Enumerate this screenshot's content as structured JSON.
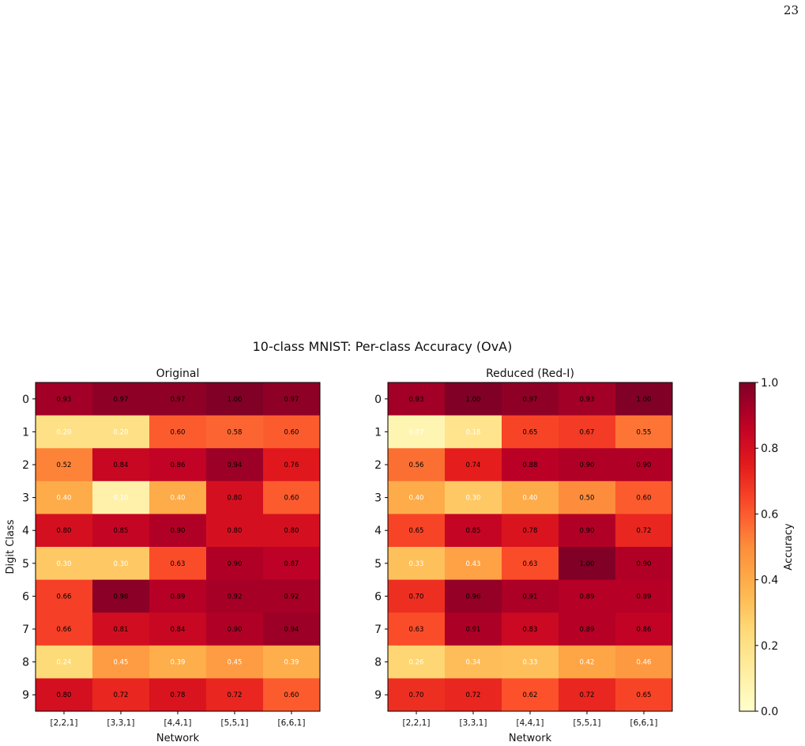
{
  "page_number": "23",
  "figure_title": "10-class MNIST: Per-class Accuracy (OvA)",
  "colorbar": {
    "label": "Accuracy",
    "ticks": [
      0.0,
      0.2,
      0.4,
      0.6,
      0.8,
      1.0
    ],
    "tick_labels": [
      "0.0",
      "0.2",
      "0.4",
      "0.6",
      "0.8",
      "1.0"
    ],
    "range": [
      0.0,
      1.0
    ],
    "colormap": "YlOrRd"
  },
  "chart_data": [
    {
      "type": "heatmap",
      "title": "Original",
      "xlabel": "Network",
      "ylabel": "Digit Class",
      "x_categories": [
        "[2,2,1]",
        "[3,3,1]",
        "[4,4,1]",
        "[5,5,1]",
        "[6,6,1]"
      ],
      "y_categories": [
        "0",
        "1",
        "2",
        "3",
        "4",
        "5",
        "6",
        "7",
        "8",
        "9"
      ],
      "value_range": [
        0.0,
        1.0
      ],
      "values": [
        [
          0.93,
          0.97,
          0.97,
          1.0,
          0.97
        ],
        [
          0.2,
          0.2,
          0.6,
          0.58,
          0.6
        ],
        [
          0.52,
          0.84,
          0.86,
          0.94,
          0.76
        ],
        [
          0.4,
          0.1,
          0.4,
          0.8,
          0.6
        ],
        [
          0.8,
          0.85,
          0.9,
          0.8,
          0.8
        ],
        [
          0.3,
          0.3,
          0.63,
          0.9,
          0.87
        ],
        [
          0.66,
          0.98,
          0.89,
          0.92,
          0.92
        ],
        [
          0.66,
          0.81,
          0.84,
          0.9,
          0.94
        ],
        [
          0.24,
          0.45,
          0.39,
          0.45,
          0.39
        ],
        [
          0.8,
          0.72,
          0.78,
          0.72,
          0.6
        ]
      ]
    },
    {
      "type": "heatmap",
      "title": "Reduced (Red-I)",
      "xlabel": "Network",
      "ylabel": "",
      "x_categories": [
        "[2,2,1]",
        "[3,3,1]",
        "[4,4,1]",
        "[5,5,1]",
        "[6,6,1]"
      ],
      "y_categories": [
        "0",
        "1",
        "2",
        "3",
        "4",
        "5",
        "6",
        "7",
        "8",
        "9"
      ],
      "value_range": [
        0.0,
        1.0
      ],
      "values": [
        [
          0.93,
          1.0,
          0.97,
          0.93,
          1.0
        ],
        [
          0.07,
          0.18,
          0.65,
          0.67,
          0.55
        ],
        [
          0.56,
          0.74,
          0.88,
          0.9,
          0.9
        ],
        [
          0.4,
          0.3,
          0.4,
          0.5,
          0.6
        ],
        [
          0.65,
          0.85,
          0.78,
          0.9,
          0.72
        ],
        [
          0.33,
          0.43,
          0.63,
          1.0,
          0.9
        ],
        [
          0.7,
          0.96,
          0.91,
          0.89,
          0.89
        ],
        [
          0.63,
          0.91,
          0.83,
          0.89,
          0.86
        ],
        [
          0.26,
          0.34,
          0.33,
          0.42,
          0.46
        ],
        [
          0.7,
          0.72,
          0.62,
          0.72,
          0.65
        ]
      ]
    }
  ]
}
